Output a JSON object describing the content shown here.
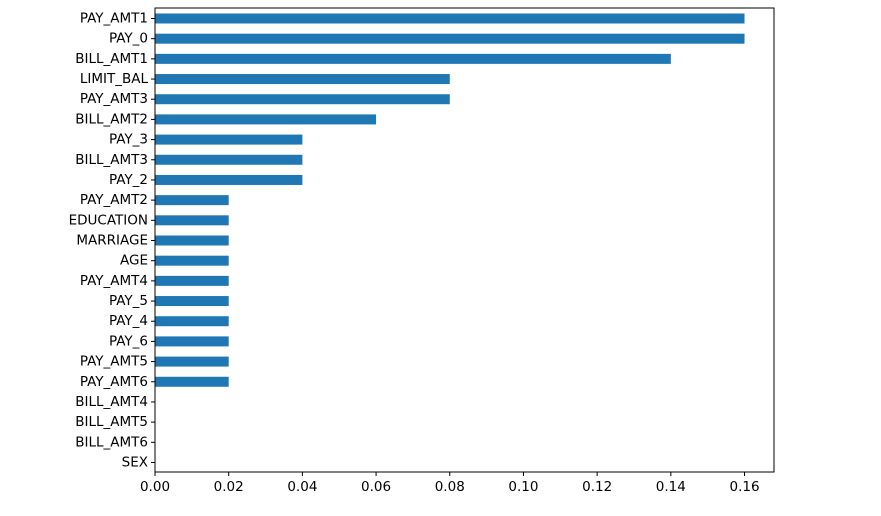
{
  "chart_data": {
    "type": "bar",
    "orientation": "horizontal",
    "categories": [
      "PAY_AMT1",
      "PAY_0",
      "BILL_AMT1",
      "LIMIT_BAL",
      "PAY_AMT3",
      "BILL_AMT2",
      "PAY_3",
      "BILL_AMT3",
      "PAY_2",
      "PAY_AMT2",
      "EDUCATION",
      "MARRIAGE",
      "AGE",
      "PAY_AMT4",
      "PAY_5",
      "PAY_4",
      "PAY_6",
      "PAY_AMT5",
      "PAY_AMT6",
      "BILL_AMT4",
      "BILL_AMT5",
      "BILL_AMT6",
      "SEX"
    ],
    "values": [
      0.16,
      0.16,
      0.14,
      0.08,
      0.08,
      0.06,
      0.04,
      0.04,
      0.04,
      0.02,
      0.02,
      0.02,
      0.02,
      0.02,
      0.02,
      0.02,
      0.02,
      0.02,
      0.02,
      0.0,
      0.0,
      0.0,
      0.0
    ],
    "xticks": [
      "0.00",
      "0.02",
      "0.04",
      "0.06",
      "0.08",
      "0.10",
      "0.12",
      "0.14",
      "0.16"
    ],
    "xlim": [
      0,
      0.168
    ],
    "title": "",
    "xlabel": "",
    "ylabel": "",
    "grid": false,
    "bar_color": "#1f77b4"
  }
}
